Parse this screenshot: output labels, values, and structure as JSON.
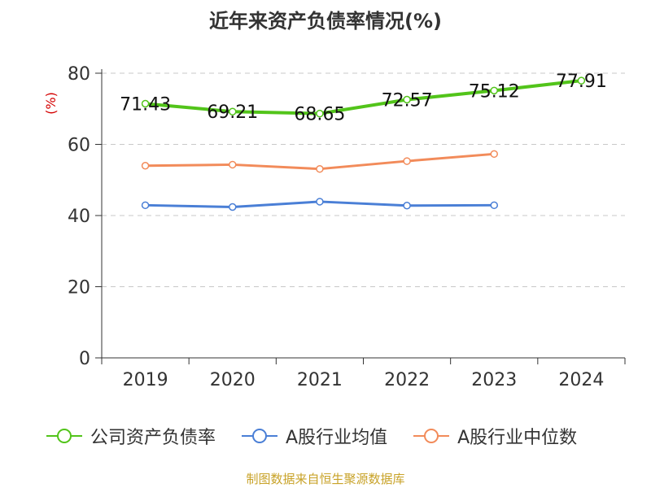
{
  "chart_data": {
    "type": "line",
    "title": "近年来资产负债率情况(%)",
    "ylabel": "(%)",
    "xlabel": "",
    "categories": [
      "2019",
      "2020",
      "2021",
      "2022",
      "2023",
      "2024"
    ],
    "ylim": [
      0,
      80
    ],
    "yticks": [
      0,
      20,
      40,
      60,
      80
    ],
    "grid": true,
    "legend_position": "bottom",
    "series": [
      {
        "name": "公司资产负债率",
        "color": "#52c41a",
        "values": [
          71.43,
          69.21,
          68.65,
          72.57,
          75.12,
          77.91
        ],
        "labels": [
          "71.43",
          "69.21",
          "68.65",
          "72.57",
          "75.12",
          "77.91"
        ]
      },
      {
        "name": "A股行业均值",
        "color": "#4a7fd6",
        "values": [
          42.9,
          42.4,
          43.9,
          42.8,
          42.9,
          null
        ]
      },
      {
        "name": "A股行业中位数",
        "color": "#f28b5a",
        "values": [
          54.0,
          54.3,
          53.1,
          55.3,
          57.3,
          null
        ]
      }
    ]
  },
  "footer": {
    "source": "制图数据来自恒生聚源数据库"
  }
}
